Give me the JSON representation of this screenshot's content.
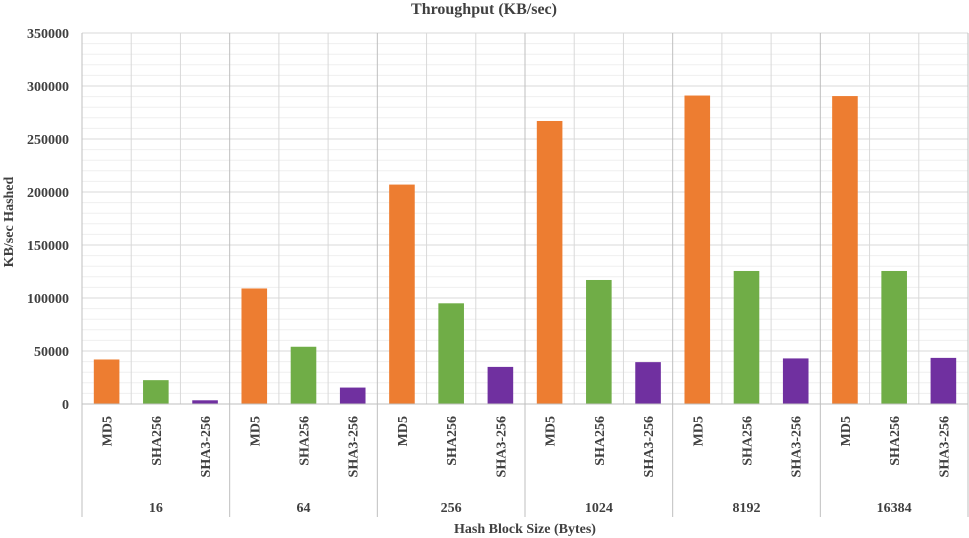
{
  "chart_data": {
    "type": "bar",
    "title": "Throughput (KB/sec)",
    "xlabel": "Hash Block Size (Bytes)",
    "ylabel": "KB/sec Hashed",
    "ylim": [
      0,
      350000
    ],
    "yticks": [
      0,
      50000,
      100000,
      150000,
      200000,
      250000,
      300000,
      350000
    ],
    "grid": true,
    "legend": "none",
    "groups": [
      "16",
      "64",
      "256",
      "1024",
      "8192",
      "16384"
    ],
    "subcategories": [
      "MD5",
      "SHA256",
      "SHA3-256"
    ],
    "colors": {
      "MD5": "#ed7d31",
      "SHA256": "#70ad47",
      "SHA3-256": "#7030a0"
    },
    "series": [
      {
        "name": "MD5",
        "values": [
          42000,
          109000,
          207000,
          267000,
          291000,
          290500
        ]
      },
      {
        "name": "SHA256",
        "values": [
          22500,
          54000,
          95000,
          117000,
          125500,
          125500
        ]
      },
      {
        "name": "SHA3-256",
        "values": [
          3500,
          15500,
          35000,
          39500,
          43000,
          43500
        ]
      }
    ]
  }
}
